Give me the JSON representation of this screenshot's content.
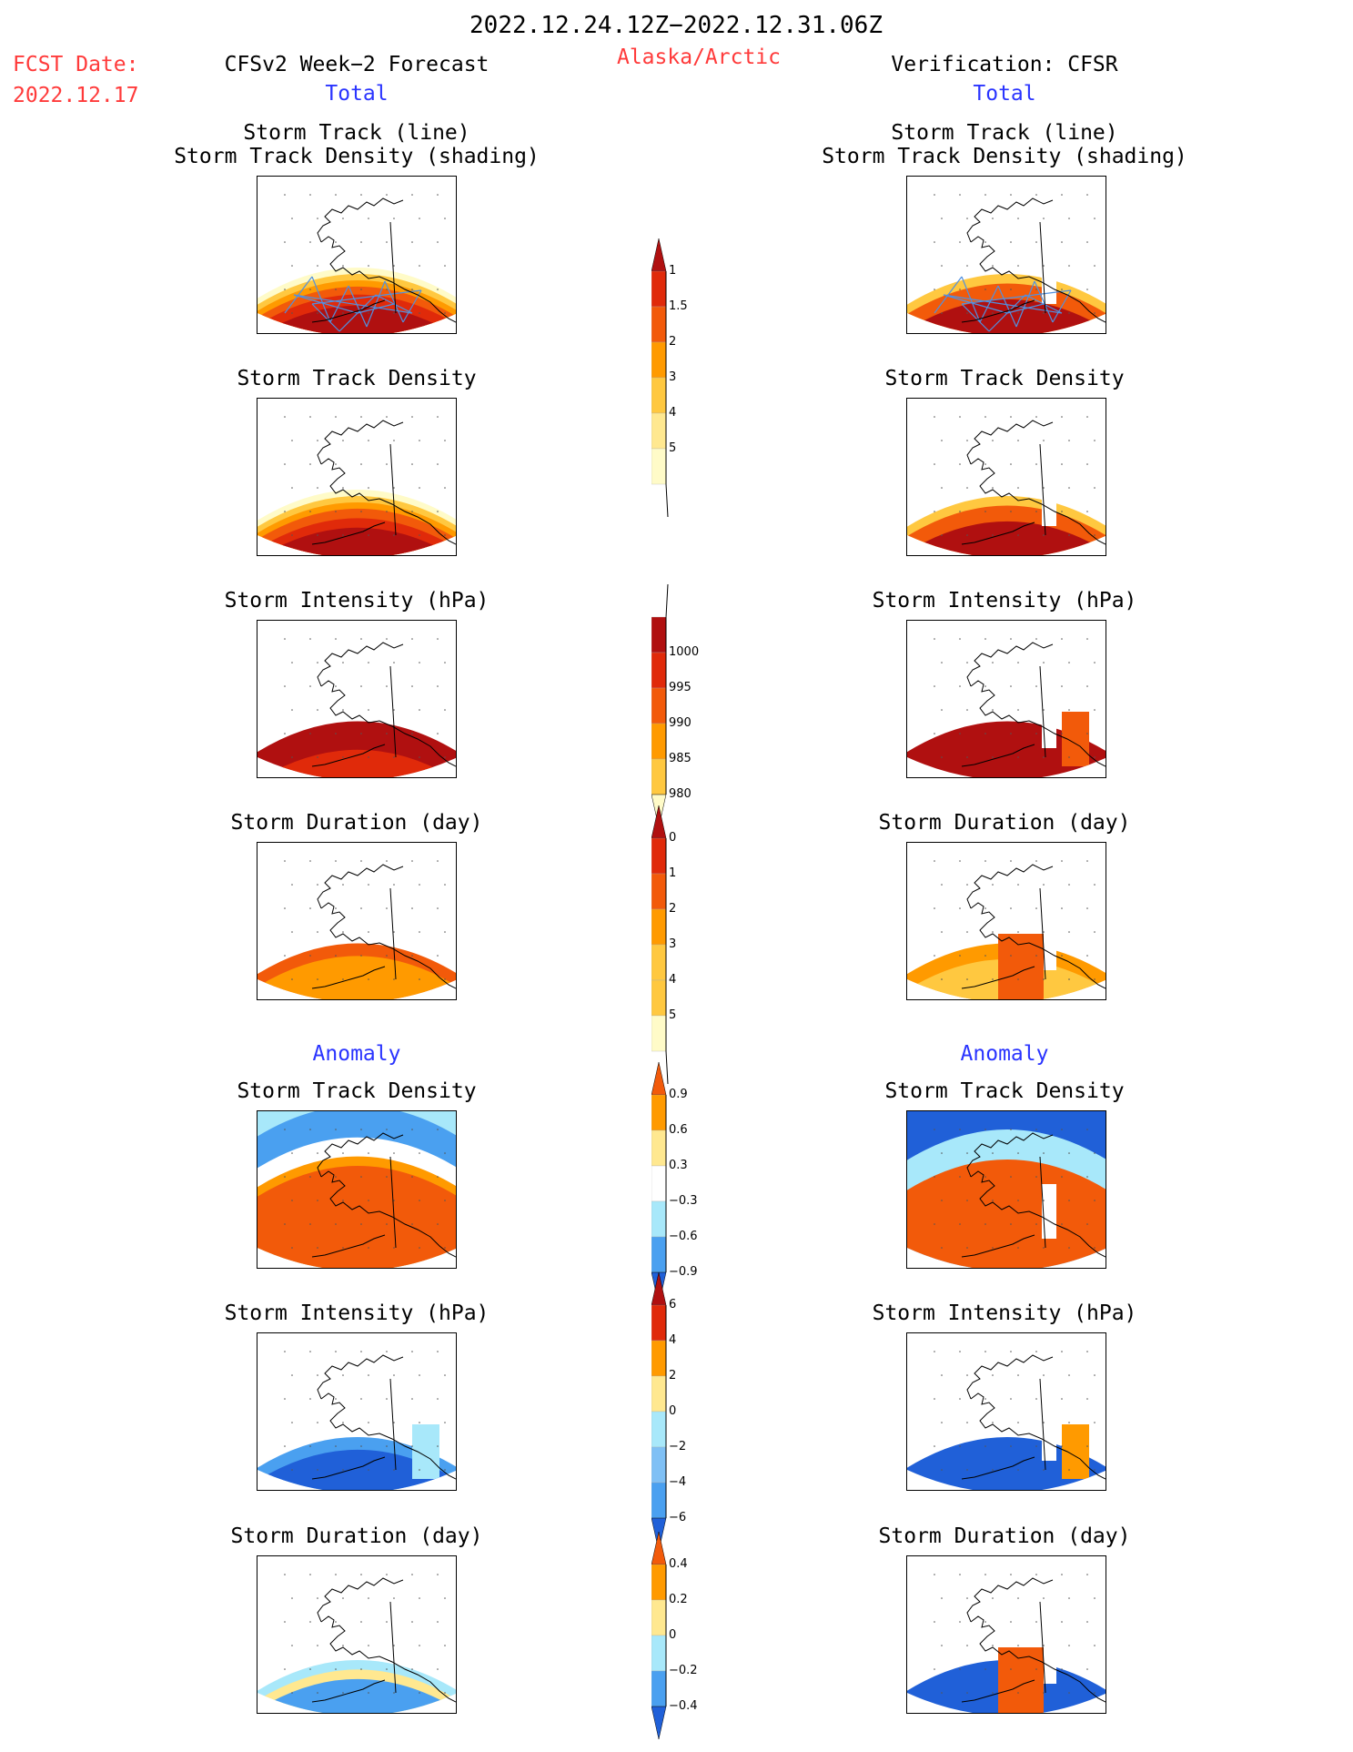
{
  "header": {
    "date_range": "2022.12.24.12Z−2022.12.31.06Z",
    "fcst_label": "FCST Date:",
    "fcst_date": "2022.12.17",
    "left_title": "CFSv2 Week−2 Forecast",
    "region": "Alaska/Arctic",
    "right_title": "Verification: CFSR",
    "total_left": "Total",
    "total_right": "Total"
  },
  "panel_titles": {
    "track_line": "Storm Track (line)",
    "track_shading": "Storm Track Density (shading)",
    "density": "Storm Track Density",
    "intensity": "Storm Intensity (hPa)",
    "duration": "Storm Duration (day)",
    "anomaly": "Anomaly"
  },
  "colorbars": {
    "density": [
      "1",
      "1.5",
      "2",
      "3",
      "4",
      "5"
    ],
    "intensity": [
      "1000",
      "995",
      "990",
      "985",
      "980"
    ],
    "duration": [
      "0",
      "1",
      "2",
      "3",
      "4",
      "5"
    ],
    "anom_density": [
      "0.9",
      "0.6",
      "0.3",
      "−0.3",
      "−0.6",
      "−0.9"
    ],
    "anom_intensity": [
      "6",
      "4",
      "2",
      "0",
      "−2",
      "−4",
      "−6"
    ],
    "anom_duration": [
      "0.4",
      "0.2",
      "0",
      "−0.2",
      "−0.4"
    ]
  },
  "colors": {
    "dark_red": "#b01010",
    "red": "#e02a0a",
    "orange_red": "#f25a0a",
    "orange": "#ff9a00",
    "light_orange": "#ffc840",
    "yellow": "#ffe890",
    "pale_yellow": "#fffbc8",
    "dark_blue": "#2060d8",
    "blue": "#4aa0f0",
    "light_blue": "#a8e8fa",
    "track_line": "#5090e0"
  }
}
